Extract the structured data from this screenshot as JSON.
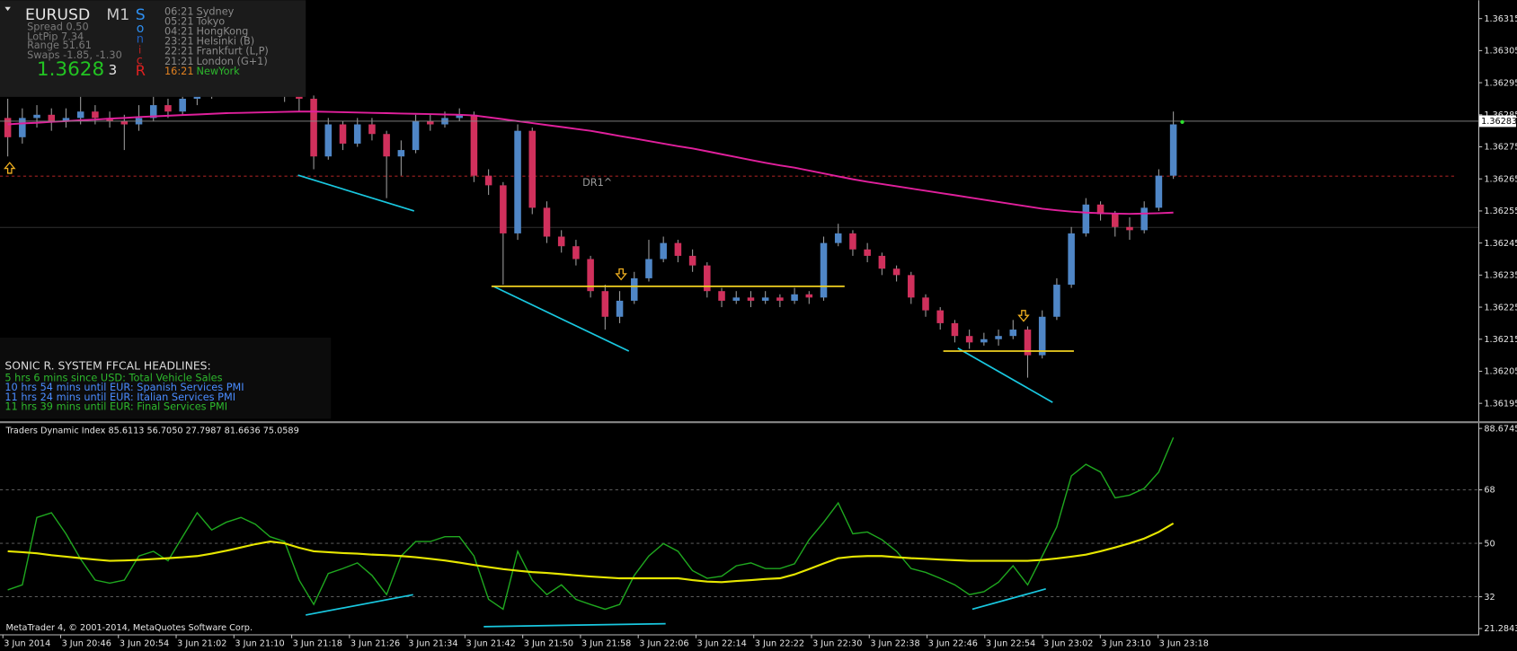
{
  "symbol_panel": {
    "symbol": "EURUSD",
    "timeframe": "M1",
    "spread": "Spread 0.50",
    "lotpip": "LotPip 7.34",
    "range": "Range 51.61",
    "swaps": "Swaps -1.85, -1.30",
    "price": "1.3628",
    "price_extra": "3",
    "sonic": [
      "S",
      "o",
      "n",
      "i",
      "c",
      "R"
    ]
  },
  "sessions": [
    {
      "time": "06:21",
      "city": "Sydney"
    },
    {
      "time": "05:21",
      "city": "Tokyo"
    },
    {
      "time": "04:21",
      "city": "HongKong"
    },
    {
      "time": "23:21",
      "city": "Helsinki (B)"
    },
    {
      "time": "22:21",
      "city": "Frankfurt (L,P)"
    },
    {
      "time": "21:21",
      "city": "London (G+1)"
    },
    {
      "time": "16:21",
      "city": "NewYork"
    }
  ],
  "headlines": {
    "title": "SONIC R. SYSTEM  FFCAL HEADLINES:",
    "items": [
      "5 hrs 6 mins since USD: Total Vehicle Sales",
      "10 hrs 54 mins until EUR: Spanish Services PMI",
      "11 hrs 24 mins until EUR: Italian Services PMI",
      "11 hrs 39 mins until EUR: Final Services PMI"
    ]
  },
  "annotation": "DR1^",
  "copyright": "MetaTrader 4, © 2001-2014, MetaQuotes Software Corp.",
  "chart_data": [
    {
      "type": "candlestick",
      "up_color": "#4f86c6",
      "down_color": "#d0305c",
      "ma_color": "#e0209c",
      "ylim": [
        1.3619,
        1.3632
      ],
      "yticks": [
        1.36315,
        1.36305,
        1.36295,
        1.36285,
        1.36275,
        1.36265,
        1.36255,
        1.36245,
        1.36235,
        1.36225,
        1.36215,
        1.36205,
        1.36195
      ],
      "last_price": 1.36283,
      "ohlc": [
        [
          1.36284,
          1.3629,
          1.36272,
          1.36278
        ],
        [
          1.36278,
          1.36287,
          1.36276,
          1.36284
        ],
        [
          1.36284,
          1.36288,
          1.36281,
          1.36285
        ],
        [
          1.36285,
          1.36287,
          1.3628,
          1.36283
        ],
        [
          1.36283,
          1.36287,
          1.36281,
          1.36284
        ],
        [
          1.36284,
          1.36292,
          1.36282,
          1.36286
        ],
        [
          1.36286,
          1.36288,
          1.36282,
          1.36284
        ],
        [
          1.36284,
          1.36286,
          1.36281,
          1.36283
        ],
        [
          1.36283,
          1.36285,
          1.36274,
          1.36282
        ],
        [
          1.36282,
          1.36288,
          1.3628,
          1.36284
        ],
        [
          1.36284,
          1.36292,
          1.36283,
          1.36288
        ],
        [
          1.36288,
          1.3629,
          1.36284,
          1.36286
        ],
        [
          1.36286,
          1.36292,
          1.36285,
          1.3629
        ],
        [
          1.3629,
          1.36296,
          1.36288,
          1.36292
        ],
        [
          1.36292,
          1.36298,
          1.3629,
          1.36294
        ],
        [
          1.36294,
          1.36299,
          1.36292,
          1.36296
        ],
        [
          1.36296,
          1.36298,
          1.36293,
          1.36295
        ],
        [
          1.36295,
          1.363,
          1.36294,
          1.36297
        ],
        [
          1.36297,
          1.36298,
          1.36292,
          1.36294
        ],
        [
          1.36294,
          1.36296,
          1.36289,
          1.36292
        ],
        [
          1.36292,
          1.36293,
          1.36286,
          1.3629
        ],
        [
          1.3629,
          1.36291,
          1.36268,
          1.36272
        ],
        [
          1.36272,
          1.36284,
          1.36271,
          1.36282
        ],
        [
          1.36282,
          1.36283,
          1.36274,
          1.36276
        ],
        [
          1.36276,
          1.36284,
          1.36275,
          1.36282
        ],
        [
          1.36282,
          1.36284,
          1.36277,
          1.36279
        ],
        [
          1.36279,
          1.3628,
          1.36259,
          1.36272
        ],
        [
          1.36272,
          1.36277,
          1.36266,
          1.36274
        ],
        [
          1.36274,
          1.36285,
          1.36273,
          1.36283
        ],
        [
          1.36283,
          1.36285,
          1.3628,
          1.36282
        ],
        [
          1.36282,
          1.36286,
          1.36281,
          1.36284
        ],
        [
          1.36284,
          1.36287,
          1.36283,
          1.36285
        ],
        [
          1.36285,
          1.36286,
          1.36264,
          1.36266
        ],
        [
          1.36266,
          1.36268,
          1.3626,
          1.36263
        ],
        [
          1.36263,
          1.36264,
          1.36232,
          1.36248
        ],
        [
          1.36248,
          1.36282,
          1.36246,
          1.3628
        ],
        [
          1.3628,
          1.36281,
          1.36254,
          1.36256
        ],
        [
          1.36256,
          1.36258,
          1.36245,
          1.36247
        ],
        [
          1.36247,
          1.36249,
          1.36242,
          1.36244
        ],
        [
          1.36244,
          1.36246,
          1.36238,
          1.3624
        ],
        [
          1.3624,
          1.36241,
          1.36228,
          1.3623
        ],
        [
          1.3623,
          1.36232,
          1.36218,
          1.36222
        ],
        [
          1.36222,
          1.3623,
          1.3622,
          1.36227
        ],
        [
          1.36227,
          1.36236,
          1.36226,
          1.36234
        ],
        [
          1.36234,
          1.36246,
          1.36233,
          1.3624
        ],
        [
          1.3624,
          1.36247,
          1.36239,
          1.36245
        ],
        [
          1.36245,
          1.36246,
          1.36239,
          1.36241
        ],
        [
          1.36241,
          1.36243,
          1.36236,
          1.36238
        ],
        [
          1.36238,
          1.36239,
          1.36228,
          1.3623
        ],
        [
          1.3623,
          1.36231,
          1.36225,
          1.36227
        ],
        [
          1.36227,
          1.3623,
          1.36226,
          1.36228
        ],
        [
          1.36228,
          1.3623,
          1.36225,
          1.36227
        ],
        [
          1.36227,
          1.3623,
          1.36226,
          1.36228
        ],
        [
          1.36228,
          1.36229,
          1.36225,
          1.36227
        ],
        [
          1.36227,
          1.36231,
          1.36226,
          1.36229
        ],
        [
          1.36229,
          1.3623,
          1.36226,
          1.36228
        ],
        [
          1.36228,
          1.36247,
          1.36227,
          1.36245
        ],
        [
          1.36245,
          1.36251,
          1.36244,
          1.36248
        ],
        [
          1.36248,
          1.36249,
          1.36241,
          1.36243
        ],
        [
          1.36243,
          1.36245,
          1.36239,
          1.36241
        ],
        [
          1.36241,
          1.36242,
          1.36235,
          1.36237
        ],
        [
          1.36237,
          1.36238,
          1.36233,
          1.36235
        ],
        [
          1.36235,
          1.36236,
          1.36226,
          1.36228
        ],
        [
          1.36228,
          1.36229,
          1.36222,
          1.36224
        ],
        [
          1.36224,
          1.36225,
          1.36218,
          1.3622
        ],
        [
          1.3622,
          1.36221,
          1.36214,
          1.36216
        ],
        [
          1.36216,
          1.36218,
          1.36212,
          1.36214
        ],
        [
          1.36214,
          1.36217,
          1.36213,
          1.36215
        ],
        [
          1.36215,
          1.36218,
          1.36213,
          1.36216
        ],
        [
          1.36216,
          1.36221,
          1.36215,
          1.36218
        ],
        [
          1.36218,
          1.36219,
          1.36203,
          1.3621
        ],
        [
          1.3621,
          1.36224,
          1.36209,
          1.36222
        ],
        [
          1.36222,
          1.36234,
          1.36221,
          1.36232
        ],
        [
          1.36232,
          1.3625,
          1.36231,
          1.36248
        ],
        [
          1.36248,
          1.36259,
          1.36247,
          1.36257
        ],
        [
          1.36257,
          1.36258,
          1.36252,
          1.36254
        ],
        [
          1.36254,
          1.36255,
          1.36247,
          1.3625
        ],
        [
          1.3625,
          1.36253,
          1.36246,
          1.36249
        ],
        [
          1.36249,
          1.36258,
          1.36248,
          1.36256
        ],
        [
          1.36256,
          1.36268,
          1.36255,
          1.36266
        ],
        [
          1.36266,
          1.36286,
          1.36265,
          1.36282
        ]
      ],
      "ma_values": [
        1.36282,
        1.362823,
        1.362825,
        1.362828,
        1.36283,
        1.362833,
        1.362835,
        1.362838,
        1.36284,
        1.362843,
        1.362845,
        1.362847,
        1.362849,
        1.362851,
        1.362853,
        1.362855,
        1.362856,
        1.362857,
        1.362858,
        1.362859,
        1.36286,
        1.36286,
        1.362859,
        1.362858,
        1.362857,
        1.362856,
        1.362855,
        1.362854,
        1.362853,
        1.362852,
        1.362851,
        1.36285,
        1.362848,
        1.362842,
        1.362836,
        1.36283,
        1.362824,
        1.362818,
        1.362812,
        1.362806,
        1.3628,
        1.362792,
        1.362784,
        1.362776,
        1.362768,
        1.36276,
        1.362752,
        1.362745,
        1.362736,
        1.362727,
        1.362718,
        1.362709,
        1.3627,
        1.362692,
        1.362685,
        1.362676,
        1.362667,
        1.362658,
        1.362649,
        1.362641,
        1.362634,
        1.362627,
        1.36262,
        1.362613,
        1.362606,
        1.362599,
        1.362592,
        1.362585,
        1.362578,
        1.362571,
        1.362564,
        1.362557,
        1.362552,
        1.362548,
        1.362545,
        1.362543,
        1.362542,
        1.362541,
        1.362542,
        1.362543,
        1.362545
      ]
    },
    {
      "type": "line",
      "title": "Traders Dynamic Index 85.6113 56.7050 27.7987 81.6636 75.0589",
      "ylim": [
        21.2843,
        88.6745
      ],
      "yticks": [
        88.6745,
        68,
        50,
        32,
        21.2843
      ],
      "grid": true,
      "series": [
        {
          "color": "#1fa81f",
          "values": [
            34.3,
            36,
            58.7,
            60.3,
            53.2,
            44.7,
            37.6,
            36.6,
            37.6,
            45.7,
            47.3,
            44.1,
            52.2,
            60.3,
            54.5,
            57.1,
            58.7,
            56.4,
            52.2,
            50.6,
            37.6,
            29.4,
            39.8,
            41.5,
            43.4,
            39.2,
            32.7,
            45.7,
            50.6,
            50.6,
            52.2,
            52.2,
            45.7,
            31.1,
            27.8,
            47.3,
            37.6,
            32.7,
            36,
            31.1,
            29.4,
            27.8,
            29.4,
            39.2,
            45.7,
            49.9,
            47.3,
            40.8,
            38.2,
            38.9,
            42.4,
            43.4,
            41.5,
            41.5,
            43.1,
            51.2,
            57.1,
            63.6,
            53.2,
            53.8,
            51.2,
            47.3,
            41.5,
            40.2,
            38.2,
            36,
            32.7,
            33.7,
            36.9,
            42.4,
            36,
            45.7,
            55.5,
            72.7,
            76.6,
            74,
            65.3,
            66.2,
            68.5,
            74,
            85.6
          ]
        },
        {
          "color": "#e6e600",
          "values": [
            47.3,
            47,
            46.6,
            46,
            45.5,
            45,
            44.5,
            44.1,
            44.2,
            44.4,
            44.7,
            45,
            45.3,
            45.7,
            46.5,
            47.5,
            48.6,
            49.7,
            50.6,
            50,
            48.5,
            47.3,
            47,
            46.7,
            46.5,
            46.2,
            46,
            45.7,
            45.3,
            44.8,
            44.2,
            43.5,
            42.7,
            42,
            41.3,
            40.8,
            40.3,
            40,
            39.6,
            39.2,
            38.8,
            38.5,
            38.2,
            38.2,
            38.2,
            38.2,
            38.2,
            37.6,
            37.1,
            36.9,
            37.3,
            37.6,
            38,
            38.2,
            39.5,
            41.3,
            43.2,
            45,
            45.5,
            45.7,
            45.7,
            45.3,
            45,
            44.8,
            44.5,
            44.3,
            44.1,
            44.1,
            44.1,
            44.1,
            44.1,
            44.4,
            44.9,
            45.5,
            46.2,
            47.3,
            48.6,
            50,
            51.6,
            53.8,
            56.7
          ]
        }
      ],
      "x_labels": [
        "3 Jun 2014",
        "3 Jun 20:46",
        "3 Jun 20:54",
        "3 Jun 21:02",
        "3 Jun 21:10",
        "3 Jun 21:18",
        "3 Jun 21:26",
        "3 Jun 21:34",
        "3 Jun 21:42",
        "3 Jun 21:50",
        "3 Jun 21:58",
        "3 Jun 22:06",
        "3 Jun 22:14",
        "3 Jun 22:22",
        "3 Jun 22:30",
        "3 Jun 22:38",
        "3 Jun 22:46",
        "3 Jun 22:54",
        "3 Jun 23:02",
        "3 Jun 23:10",
        "3 Jun 23:18"
      ]
    }
  ]
}
